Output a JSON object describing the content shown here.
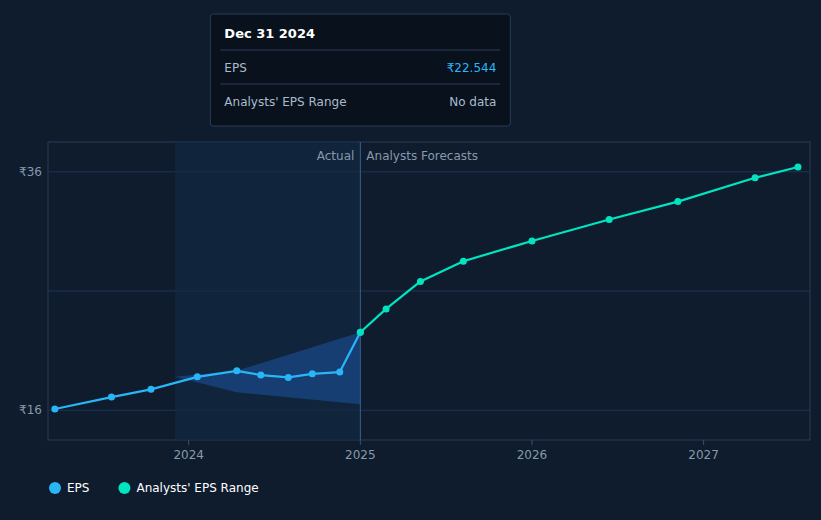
{
  "chart_data": {
    "type": "line",
    "series": [
      {
        "name": "EPS",
        "color": "#29b6f6",
        "marker": "circle",
        "x": [
          2023.22,
          2023.55,
          2023.78,
          2024.05,
          2024.28,
          2024.42,
          2024.58,
          2024.72,
          2024.88,
          2025.0
        ],
        "values": [
          16.1,
          17.1,
          17.75,
          18.8,
          19.3,
          18.95,
          18.75,
          19.05,
          19.2,
          22.544
        ]
      },
      {
        "name": "Analysts' EPS Range",
        "color": "#00e5c0",
        "marker": "circle",
        "x": [
          2025.0,
          2025.15,
          2025.35,
          2025.6,
          2026.0,
          2026.45,
          2026.85,
          2027.3,
          2027.55
        ],
        "values": [
          22.544,
          24.5,
          26.8,
          28.5,
          30.2,
          32.0,
          33.5,
          35.5,
          36.4
        ]
      }
    ],
    "band": {
      "color": "#1a4a8a",
      "x": [
        2023.92,
        2024.28,
        2025.0
      ],
      "upper": [
        18.8,
        19.3,
        22.544
      ],
      "lower": [
        18.8,
        17.5,
        16.5
      ]
    },
    "shaded_range": [
      2023.92,
      2025.0
    ],
    "shade_color": "#132a45",
    "divider_x": 2025.0,
    "divider_color": "#3a6090",
    "xlim": [
      2023.18,
      2027.62
    ],
    "xticks": [
      2024,
      2025,
      2026,
      2027
    ],
    "ylim": [
      13.5,
      38.5
    ],
    "yticks": [
      {
        "value": 16,
        "label": "₹16"
      },
      {
        "value": 26,
        "label": null
      },
      {
        "value": 36,
        "label": "₹36"
      }
    ],
    "grid": true,
    "legend": "bottom",
    "annotations": [
      {
        "text": "Actual",
        "x": 2025.0
      },
      {
        "text": "Analysts Forecasts",
        "x": 2025.0
      }
    ],
    "tooltip": {
      "title": "Dec 31 2024",
      "rows": [
        {
          "label": "EPS",
          "value": 22.544,
          "value_label": "₹22.544"
        },
        {
          "label": "Analysts' EPS Range",
          "value_label": "No data"
        }
      ]
    }
  }
}
